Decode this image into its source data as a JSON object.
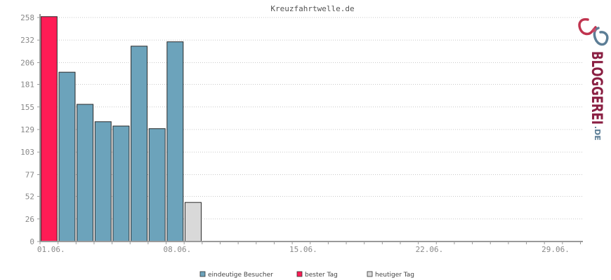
{
  "chart_data": {
    "type": "bar",
    "title": "Kreuzfahrtwelle.de",
    "ylim": [
      0,
      258
    ],
    "yticks": [
      0,
      26,
      52,
      77,
      103,
      129,
      155,
      181,
      206,
      232,
      258
    ],
    "xticks": [
      "01.06.",
      "08.06.",
      "15.06.",
      "22.06.",
      "29.06."
    ],
    "days": 30,
    "grid": true,
    "legend_position": "bottom",
    "series": [
      {
        "name": "eindeutige Besucher",
        "color": "#6ca3bb",
        "values": [
          null,
          195,
          158,
          138,
          133,
          225,
          130,
          230
        ]
      },
      {
        "name": "bester Tag",
        "color": "#ff1c55",
        "values": [
          259
        ]
      },
      {
        "name": "heutiger Tag",
        "color": "#d9d9d9",
        "values": [
          null,
          null,
          null,
          null,
          null,
          null,
          null,
          null,
          45
        ]
      }
    ]
  },
  "logo": {
    "brand": "BLOGGEREI",
    "suffix": ".DE"
  }
}
